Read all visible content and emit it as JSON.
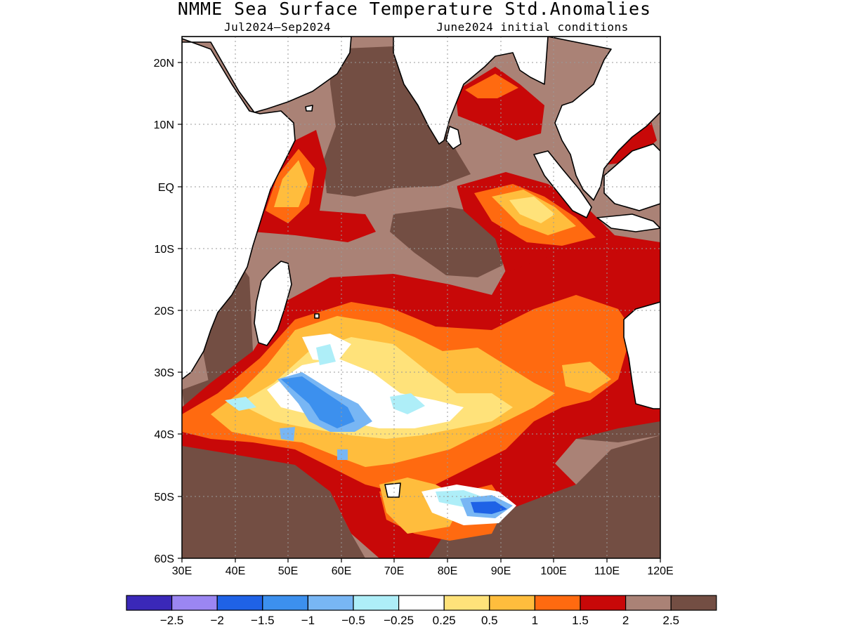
{
  "title": "NMME Sea Surface Temperature Std.Anomalies",
  "period": "Jul2024–Sep2024",
  "initial_conditions": "June2024 initial conditions",
  "colors": {
    "neg_2_5": "#3a28b8",
    "neg_2": "#9b86f2",
    "neg_1_5": "#1f62e6",
    "neg_1": "#3c90ee",
    "neg_0_5": "#78b6f4",
    "neg_0_25": "#aeeef8",
    "neutral": "#ffffff",
    "pos_0_25": "#ffe27a",
    "pos_0_5": "#ffbd3d",
    "pos_1": "#ff6a10",
    "pos_1_5": "#c80808",
    "pos_2": "#aa8276",
    "pos_2_5": "#734e43",
    "land": "#ffffff"
  },
  "chart_data": {
    "type": "heatmap",
    "title": "NMME Sea Surface Temperature Std.Anomalies",
    "subtitle_left": "Jul2024–Sep2024",
    "subtitle_right": "June2024 initial conditions",
    "xlabel": "",
    "ylabel": "",
    "xlim": [
      30,
      120
    ],
    "ylim": [
      -60,
      24
    ],
    "x_ticks": [
      "30E",
      "40E",
      "50E",
      "60E",
      "70E",
      "80E",
      "90E",
      "100E",
      "110E",
      "120E"
    ],
    "y_ticks": [
      "20N",
      "10N",
      "EQ",
      "10S",
      "20S",
      "30S",
      "40S",
      "50S",
      "60S"
    ],
    "colorbar": {
      "labels": [
        "-2.5",
        "-2",
        "-1.5",
        "-1",
        "-0.5",
        "-0.25",
        "0.25",
        "0.5",
        "1",
        "1.5",
        "2",
        "2.5"
      ],
      "bin_colors": [
        "#3a28b8",
        "#9b86f2",
        "#1f62e6",
        "#3c90ee",
        "#78b6f4",
        "#aeeef8",
        "#ffffff",
        "#ffe27a",
        "#ffbd3d",
        "#ff6a10",
        "#c80808",
        "#aa8276",
        "#734e43"
      ]
    },
    "grid": true
  }
}
